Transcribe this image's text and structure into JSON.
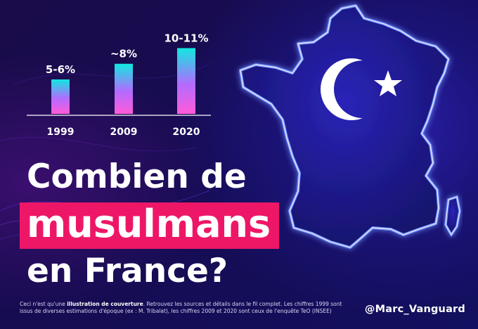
{
  "chart_data": {
    "type": "bar",
    "categories": [
      "1999",
      "2009",
      "2020"
    ],
    "values": [
      5.5,
      8,
      10.5
    ],
    "value_labels": [
      "5-6%",
      "~8%",
      "10-11%"
    ],
    "title": "",
    "xlabel": "",
    "ylabel": "",
    "ylim": [
      0,
      11
    ],
    "grid": false,
    "bar_gradient": [
      "#ff5bd9",
      "#b36bff",
      "#11e8e0"
    ]
  },
  "headline": {
    "line1": "Combien de",
    "line2": "musulmans",
    "line3": "en France?"
  },
  "footnote": {
    "pre": "Ceci n'est qu'une ",
    "bold": "illustration de couverture",
    "post": ". Retrouvez les sources et détails dans le fil complet. Les chiffres 1999 sont issus de diverses estimations d'époque (ex : M. Tribalat), les chiffres 2009 et 2020 sont ceux de l'enquête TeO (INSEE)"
  },
  "handle": "@Marc_Vanguard",
  "colors": {
    "accent": "#ee1767",
    "neon": "#5b7cff",
    "map_fill": "#1e1a8f"
  },
  "icons": [
    "crescent-star-icon",
    "france-map"
  ]
}
